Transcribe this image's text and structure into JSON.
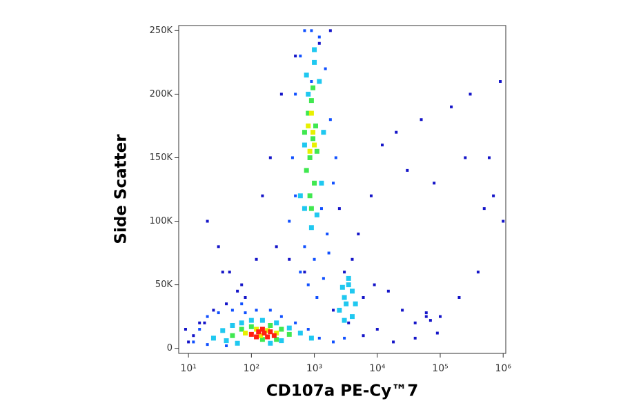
{
  "chart_data": {
    "type": "scatter",
    "x_label": "CD107a PE-Cy™7",
    "y_label": "Side Scatter",
    "x_scale": "log",
    "xlim": [
      7,
      1100000
    ],
    "ylim": [
      -4000,
      254000
    ],
    "xticks": [
      {
        "value": 10,
        "label": "10¹"
      },
      {
        "value": 100,
        "label": "10²"
      },
      {
        "value": 1000,
        "label": "10³"
      },
      {
        "value": 10000,
        "label": "10⁴"
      },
      {
        "value": 100000,
        "label": "10⁵"
      },
      {
        "value": 1000000,
        "label": "10⁶"
      }
    ],
    "yticks": [
      0,
      {
        "value": 50000,
        "label": "50K"
      },
      {
        "value": 100000,
        "label": "100K"
      },
      {
        "value": 150000,
        "label": "150K"
      },
      {
        "value": 200000,
        "label": "200K"
      },
      {
        "value": 250000,
        "label": "250K"
      }
    ],
    "series": [
      {
        "color": "#1414c8",
        "x": [
          20,
          30,
          45,
          60,
          80,
          15,
          25,
          40,
          300,
          500,
          200,
          150,
          3000,
          5000,
          8000,
          12000,
          20000,
          30000,
          50000,
          80000,
          150000,
          300000,
          600000,
          1000000,
          700000,
          400000,
          200000,
          100000,
          60000,
          40000,
          25000,
          15000,
          9000,
          6000,
          4000,
          2500,
          1800,
          1200,
          700,
          400,
          250,
          120,
          70,
          35,
          18,
          12,
          10,
          9,
          2000,
          3500,
          6000,
          10000,
          18000,
          40000,
          90000,
          250000,
          500000,
          900000,
          60000,
          70000
        ],
        "values": [
          100000,
          80000,
          60000,
          45000,
          40000,
          20000,
          30000,
          35000,
          200000,
          230000,
          150000,
          120000,
          60000,
          90000,
          120000,
          160000,
          170000,
          140000,
          180000,
          130000,
          190000,
          200000,
          150000,
          100000,
          120000,
          60000,
          40000,
          25000,
          25000,
          20000,
          30000,
          45000,
          50000,
          40000,
          70000,
          110000,
          250000,
          240000,
          60000,
          70000,
          80000,
          70000,
          50000,
          60000,
          20000,
          10000,
          5000,
          15000,
          30000,
          20000,
          10000,
          15000,
          5000,
          8000,
          12000,
          150000,
          110000,
          210000,
          28000,
          22000
        ]
      },
      {
        "color": "#1050ff",
        "x": [
          12,
          15,
          20,
          30,
          50,
          80,
          120,
          200,
          300,
          500,
          800,
          1200,
          2000,
          3000,
          20,
          40,
          70,
          400,
          450,
          500,
          600,
          700,
          900,
          1200,
          1500,
          1800,
          2000,
          1600,
          1000,
          700,
          500,
          600,
          800,
          1100,
          1400,
          1700,
          900,
          1300,
          700,
          2200
        ],
        "values": [
          5000,
          15000,
          25000,
          28000,
          30000,
          28000,
          30000,
          30000,
          25000,
          20000,
          15000,
          8000,
          5000,
          8000,
          3000,
          2000,
          35000,
          100000,
          150000,
          200000,
          230000,
          250000,
          250000,
          245000,
          220000,
          180000,
          130000,
          90000,
          70000,
          80000,
          120000,
          60000,
          50000,
          40000,
          55000,
          75000,
          210000,
          110000,
          170000,
          150000
        ]
      },
      {
        "color": "#20c8f0",
        "x": [
          25,
          35,
          50,
          70,
          100,
          150,
          250,
          400,
          600,
          900,
          300,
          200,
          60,
          40,
          600,
          700,
          800,
          1000,
          1200,
          1400,
          1300,
          1100,
          900,
          700,
          750,
          1000,
          2500,
          3000,
          3500,
          4000,
          4500,
          3000,
          3500,
          2800,
          4000,
          3200
        ],
        "values": [
          8000,
          14000,
          18000,
          20000,
          22000,
          22000,
          20000,
          16000,
          12000,
          8000,
          6000,
          4000,
          4000,
          6000,
          120000,
          160000,
          200000,
          225000,
          210000,
          170000,
          130000,
          105000,
          95000,
          110000,
          215000,
          235000,
          30000,
          40000,
          50000,
          45000,
          35000,
          22000,
          55000,
          48000,
          25000,
          35000
        ]
      },
      {
        "color": "#40e850",
        "x": [
          50,
          70,
          100,
          200,
          300,
          400,
          150,
          250,
          750,
          850,
          950,
          1050,
          800,
          900,
          1000,
          850,
          950,
          1100,
          700,
          900
        ],
        "values": [
          10000,
          15000,
          17000,
          18000,
          15000,
          11000,
          7000,
          7000,
          140000,
          150000,
          165000,
          175000,
          185000,
          195000,
          130000,
          120000,
          205000,
          155000,
          170000,
          110000
        ]
      },
      {
        "color": "#e8f000",
        "x": [
          80,
          120,
          180,
          250,
          140,
          850,
          950,
          900,
          1000,
          800
        ],
        "values": [
          12000,
          15000,
          14000,
          12000,
          10000,
          155000,
          170000,
          185000,
          160000,
          175000
        ]
      },
      {
        "color": "#ff2010",
        "x": [
          100,
          130,
          160,
          200,
          120,
          180,
          150,
          230
        ],
        "values": [
          11000,
          13000,
          12000,
          13000,
          9000,
          9000,
          15000,
          10000
        ]
      }
    ]
  }
}
